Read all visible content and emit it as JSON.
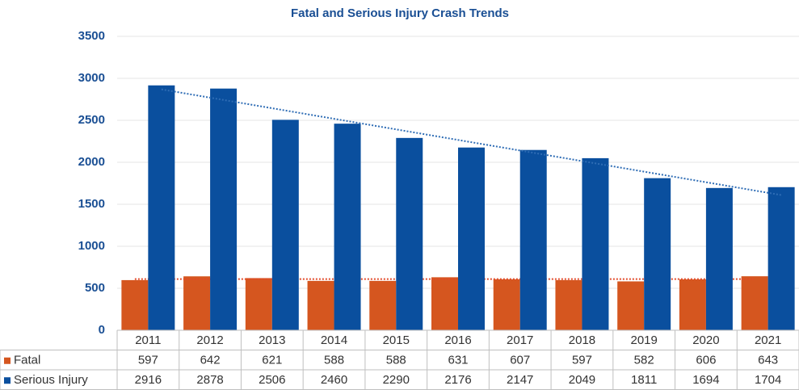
{
  "chart_data": {
    "type": "bar",
    "title": "Fatal and Serious Injury Crash Trends",
    "categories": [
      "2011",
      "2012",
      "2013",
      "2014",
      "2015",
      "2016",
      "2017",
      "2018",
      "2019",
      "2020",
      "2021"
    ],
    "series": [
      {
        "name": "Fatal",
        "color": "#d5561f",
        "trendline": true,
        "trendline_color": "#e24a2a",
        "values": [
          597,
          642,
          621,
          588,
          588,
          631,
          607,
          597,
          582,
          606,
          643
        ]
      },
      {
        "name": "Serious Injury",
        "color": "#0a4f9e",
        "trendline": true,
        "trendline_color": "#2f6db5",
        "values": [
          2916,
          2878,
          2506,
          2460,
          2290,
          2176,
          2147,
          2049,
          1811,
          1694,
          1704
        ]
      }
    ],
    "ylim": [
      0,
      3500
    ],
    "yticks": [
      0,
      500,
      1000,
      1500,
      2000,
      2500,
      3000,
      3500
    ],
    "grid": true,
    "data_table": true
  }
}
